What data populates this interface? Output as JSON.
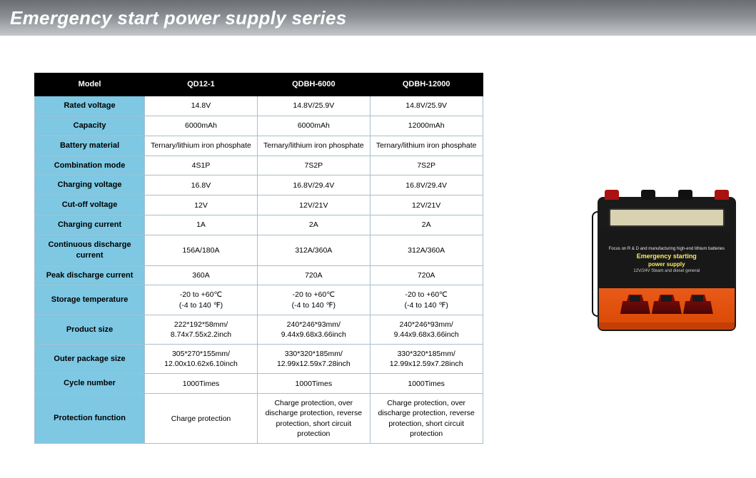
{
  "colors": {
    "header_bg": "#000000",
    "header_text": "#ffffff",
    "label_bg": "#7ec8e3",
    "cell_bg": "#ffffff",
    "border": "#a8bfca",
    "title_gradient_top": "#6a6e73",
    "title_gradient_bottom": "#c5c7ca",
    "title_text": "#ffffff"
  },
  "title": "Emergency start power supply series",
  "table": {
    "header": [
      "Model",
      "QD12-1",
      "QDBH-6000",
      "QDBH-12000"
    ],
    "rows": [
      {
        "label": "Rated voltage",
        "cells": [
          "14.8V",
          "14.8V/25.9V",
          "14.8V/25.9V"
        ]
      },
      {
        "label": "Capacity",
        "cells": [
          "6000mAh",
          "6000mAh",
          "12000mAh"
        ]
      },
      {
        "label": "Battery material",
        "cells": [
          "Ternary/lithium iron phosphate",
          "Ternary/lithium iron phosphate",
          "Ternary/lithium iron phosphate"
        ]
      },
      {
        "label": "Combination mode",
        "cells": [
          "4S1P",
          "7S2P",
          "7S2P"
        ]
      },
      {
        "label": "Charging voltage",
        "cells": [
          "16.8V",
          "16.8V/29.4V",
          "16.8V/29.4V"
        ]
      },
      {
        "label": "Cut-off voltage",
        "cells": [
          "12V",
          "12V/21V",
          "12V/21V"
        ]
      },
      {
        "label": "Charging current",
        "cells": [
          "1A",
          "2A",
          "2A"
        ]
      },
      {
        "label": "Continuous discharge current",
        "cells": [
          "156A/180A",
          "312A/360A",
          "312A/360A"
        ]
      },
      {
        "label": "Peak discharge current",
        "cells": [
          "360A",
          "720A",
          "720A"
        ]
      },
      {
        "label": "Storage temperature",
        "cells": [
          "-20 to +60℃\n(-4 to 140 ℉)",
          "-20 to +60℃\n(-4 to 140 ℉)",
          "-20 to +60℃\n(-4 to 140 ℉)"
        ]
      },
      {
        "label": "Product size",
        "cells": [
          "222*192*58mm/\n8.74x7.55x2.2inch",
          "240*246*93mm/\n9.44x9.68x3.66inch",
          "240*246*93mm/\n9.44x9.68x3.66inch"
        ]
      },
      {
        "label": "Outer package size",
        "cells": [
          "305*270*155mm/\n12.00x10.62x6.10inch",
          "330*320*185mm/\n12.99x12.59x7.28inch",
          "330*320*185mm/\n12.99x12.59x7.28inch"
        ]
      },
      {
        "label": "Cycle number",
        "cells": [
          "1000Times",
          "1000Times",
          "1000Times"
        ]
      },
      {
        "label": "Protection function",
        "cells": [
          "Charge protection",
          "Charge protection, over discharge protection, reverse protection, short circuit protection",
          "Charge protection, over discharge protection, reverse protection, short circuit protection"
        ]
      }
    ]
  },
  "product_image": {
    "label_small": "Focus on R & D and manufacturing high-end lithium batteries",
    "label_main1": "Emergency starting",
    "label_main2": "power supply",
    "label_sub": "12V/24V Steam and diesel general"
  }
}
